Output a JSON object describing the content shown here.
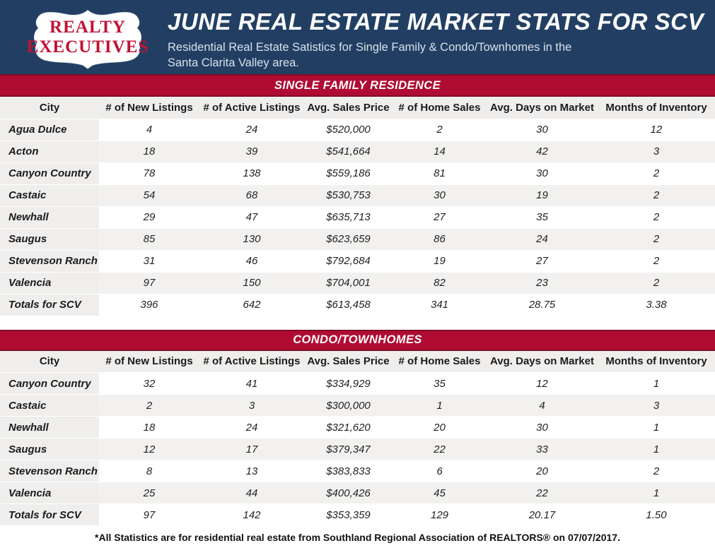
{
  "header": {
    "logo_line1": "REALTY",
    "logo_line2": "EXECUTIVES",
    "title": "JUNE REAL ESTATE MARKET STATS FOR SCV",
    "subtitle_line1": "Residential Real Estate Satistics for Single Family & Condo/Townhomes in the",
    "subtitle_line2": "Santa Clarita Valley area."
  },
  "columns": [
    "City",
    "# of New Listings",
    "# of Active Listings",
    "Avg. Sales Price",
    "# of Home Sales",
    "Avg. Days on Market",
    "Months of Inventory"
  ],
  "tables": [
    {
      "band_title": "SINGLE FAMILY RESIDENCE",
      "rows": [
        [
          "Agua Dulce",
          "4",
          "24",
          "$520,000",
          "2",
          "30",
          "12"
        ],
        [
          "Acton",
          "18",
          "39",
          "$541,664",
          "14",
          "42",
          "3"
        ],
        [
          "Canyon Country",
          "78",
          "138",
          "$559,186",
          "81",
          "30",
          "2"
        ],
        [
          "Castaic",
          "54",
          "68",
          "$530,753",
          "30",
          "19",
          "2"
        ],
        [
          "Newhall",
          "29",
          "47",
          "$635,713",
          "27",
          "35",
          "2"
        ],
        [
          "Saugus",
          "85",
          "130",
          "$623,659",
          "86",
          "24",
          "2"
        ],
        [
          "Stevenson Ranch",
          "31",
          "46",
          "$792,684",
          "19",
          "27",
          "2"
        ],
        [
          "Valencia",
          "97",
          "150",
          "$704,001",
          "82",
          "23",
          "2"
        ],
        [
          "Totals for SCV",
          "396",
          "642",
          "$613,458",
          "341",
          "28.75",
          "3.38"
        ]
      ]
    },
    {
      "band_title": "CONDO/TOWNHOMES",
      "rows": [
        [
          "Canyon Country",
          "32",
          "41",
          "$334,929",
          "35",
          "12",
          "1"
        ],
        [
          "Castaic",
          "2",
          "3",
          "$300,000",
          "1",
          "4",
          "3"
        ],
        [
          "Newhall",
          "18",
          "24",
          "$321,620",
          "20",
          "30",
          "1"
        ],
        [
          "Saugus",
          "12",
          "17",
          "$379,347",
          "22",
          "33",
          "1"
        ],
        [
          "Stevenson Ranch",
          "8",
          "13",
          "$383,833",
          "6",
          "20",
          "2"
        ],
        [
          "Valencia",
          "25",
          "44",
          "$400,426",
          "45",
          "22",
          "1"
        ],
        [
          "Totals for SCV",
          "97",
          "142",
          "$353,359",
          "129",
          "20.17",
          "1.50"
        ]
      ]
    }
  ],
  "footer": {
    "note": "*All Statistics are for residential real estate from Southland Regional Association of REALTORS® on 07/07/2017."
  },
  "colors": {
    "navy": "#223f63",
    "band_red": "#b00c33",
    "band_border_maroon": "#7e0b27",
    "logo_red": "#c01334",
    "header_row_gray": "#efeeed",
    "alt_row_gray": "#f2f1f0"
  }
}
